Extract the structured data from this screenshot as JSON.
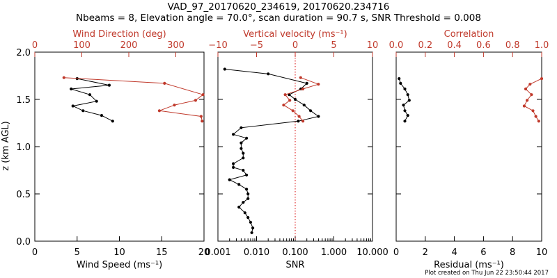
{
  "header": {
    "title": "VAD_97_20170620_234619, 20170620.234716",
    "subtitle": "Nbeams = 8, Elevation angle = 70.0°, scan duration = 90.7 s, SNR Threshold = 0.008"
  },
  "footer": {
    "text": "Plot created on Thu Jun 22 23:50:44 2017"
  },
  "colors": {
    "primary": "#000000",
    "secondary": "#c0392b",
    "reference_line": "#e03030"
  },
  "y_axis": {
    "label": "z (km AGL)",
    "ticks": [
      "0.0",
      "0.5",
      "1.0",
      "1.5",
      "2.0"
    ],
    "range": [
      0,
      2
    ]
  },
  "chart_data": [
    {
      "type": "line",
      "id": "wind",
      "bottom_axis": {
        "label": "Wind Speed (ms⁻¹)",
        "range": [
          0,
          20
        ],
        "ticks": [
          0,
          5,
          10,
          15,
          20
        ],
        "tick_labels": [
          "0",
          "5",
          "10",
          "15",
          "20"
        ]
      },
      "top_axis": {
        "label": "Wind Direction (deg)",
        "range": [
          0,
          360
        ],
        "ticks": [
          0,
          100,
          200,
          300
        ],
        "tick_labels": [
          "0",
          "100",
          "200",
          "300"
        ]
      },
      "series": [
        {
          "name": "Wind Speed",
          "axis": "bottom",
          "color": "#000000",
          "points": [
            [
              5.0,
              1.72
            ],
            [
              8.8,
              1.65
            ],
            [
              4.3,
              1.61
            ],
            [
              6.5,
              1.55
            ],
            [
              7.3,
              1.48
            ],
            [
              4.5,
              1.43
            ],
            [
              5.7,
              1.38
            ],
            [
              7.9,
              1.33
            ],
            [
              9.2,
              1.27
            ]
          ]
        },
        {
          "name": "Wind Direction",
          "axis": "top",
          "color": "#c0392b",
          "points": [
            [
              62,
              1.73
            ],
            [
              276,
              1.67
            ],
            [
              358,
              1.55
            ],
            [
              342,
              1.49
            ],
            [
              297,
              1.44
            ],
            [
              265,
              1.38
            ],
            [
              354,
              1.32
            ],
            [
              356,
              1.27
            ]
          ]
        }
      ]
    },
    {
      "type": "line",
      "id": "snr",
      "bottom_axis": {
        "label": "SNR",
        "scale": "log",
        "range": [
          0.001,
          10
        ],
        "ticks": [
          0.001,
          0.01,
          0.1,
          1,
          10
        ],
        "tick_labels": [
          "0.001",
          "0.010",
          "0.100",
          "1.000",
          "10.000"
        ]
      },
      "top_axis": {
        "label": "Vertical velocity (ms⁻¹)",
        "range": [
          -10,
          10
        ],
        "ticks": [
          -10,
          -5,
          0,
          5,
          10
        ],
        "tick_labels": [
          "−10",
          "−5",
          "0",
          "5",
          "10"
        ]
      },
      "reference_line": {
        "axis": "bottom",
        "value": 0.1
      },
      "series": [
        {
          "name": "SNR",
          "axis": "bottom",
          "color": "#000000",
          "points": [
            [
              0.0015,
              1.82
            ],
            [
              0.02,
              1.77
            ],
            [
              0.2,
              1.67
            ],
            [
              0.14,
              1.61
            ],
            [
              0.07,
              1.55
            ],
            [
              0.1,
              1.5
            ],
            [
              0.17,
              1.44
            ],
            [
              0.25,
              1.38
            ],
            [
              0.4,
              1.32
            ],
            [
              0.12,
              1.27
            ],
            [
              0.004,
              1.2
            ],
            [
              0.0025,
              1.13
            ],
            [
              0.0055,
              1.09
            ],
            [
              0.004,
              1.04
            ],
            [
              0.004,
              0.98
            ],
            [
              0.0045,
              0.93
            ],
            [
              0.0045,
              0.88
            ],
            [
              0.0025,
              0.82
            ],
            [
              0.0025,
              0.78
            ],
            [
              0.0045,
              0.75
            ],
            [
              0.0055,
              0.7
            ],
            [
              0.002,
              0.65
            ],
            [
              0.0035,
              0.6
            ],
            [
              0.0055,
              0.55
            ],
            [
              0.006,
              0.5
            ],
            [
              0.006,
              0.45
            ],
            [
              0.0045,
              0.41
            ],
            [
              0.0035,
              0.36
            ],
            [
              0.005,
              0.3
            ],
            [
              0.006,
              0.25
            ],
            [
              0.007,
              0.2
            ],
            [
              0.008,
              0.14
            ],
            [
              0.0075,
              0.09
            ]
          ]
        },
        {
          "name": "Vertical velocity",
          "axis": "top",
          "color": "#c0392b",
          "points": [
            [
              0.7,
              1.73
            ],
            [
              3.0,
              1.66
            ],
            [
              1.0,
              1.61
            ],
            [
              -1.3,
              1.55
            ],
            [
              -0.7,
              1.49
            ],
            [
              -1.5,
              1.44
            ],
            [
              -0.3,
              1.38
            ],
            [
              0.5,
              1.32
            ],
            [
              1.0,
              1.27
            ]
          ]
        }
      ]
    },
    {
      "type": "line",
      "id": "residual",
      "bottom_axis": {
        "label": "Residual (ms⁻¹)",
        "range": [
          0,
          10
        ],
        "ticks": [
          0,
          2,
          4,
          6,
          8,
          10
        ],
        "tick_labels": [
          "0",
          "2",
          "4",
          "6",
          "8",
          "10"
        ]
      },
      "top_axis": {
        "label": "Correlation",
        "range": [
          0,
          1
        ],
        "ticks": [
          0,
          0.2,
          0.4,
          0.6,
          0.8,
          1.0
        ],
        "tick_labels": [
          "0.0",
          "0.2",
          "0.4",
          "0.6",
          "0.8",
          "1.0"
        ]
      },
      "series": [
        {
          "name": "Residual",
          "axis": "bottom",
          "color": "#000000",
          "points": [
            [
              0.2,
              1.72
            ],
            [
              0.3,
              1.67
            ],
            [
              0.6,
              1.61
            ],
            [
              0.8,
              1.55
            ],
            [
              0.9,
              1.49
            ],
            [
              0.5,
              1.44
            ],
            [
              0.6,
              1.38
            ],
            [
              0.8,
              1.33
            ],
            [
              0.6,
              1.27
            ]
          ]
        },
        {
          "name": "Correlation",
          "axis": "top",
          "color": "#c0392b",
          "points": [
            [
              1.0,
              1.72
            ],
            [
              0.92,
              1.66
            ],
            [
              0.89,
              1.61
            ],
            [
              0.93,
              1.55
            ],
            [
              0.9,
              1.49
            ],
            [
              0.88,
              1.43
            ],
            [
              0.94,
              1.38
            ],
            [
              0.96,
              1.32
            ],
            [
              0.98,
              1.27
            ]
          ]
        }
      ]
    }
  ]
}
